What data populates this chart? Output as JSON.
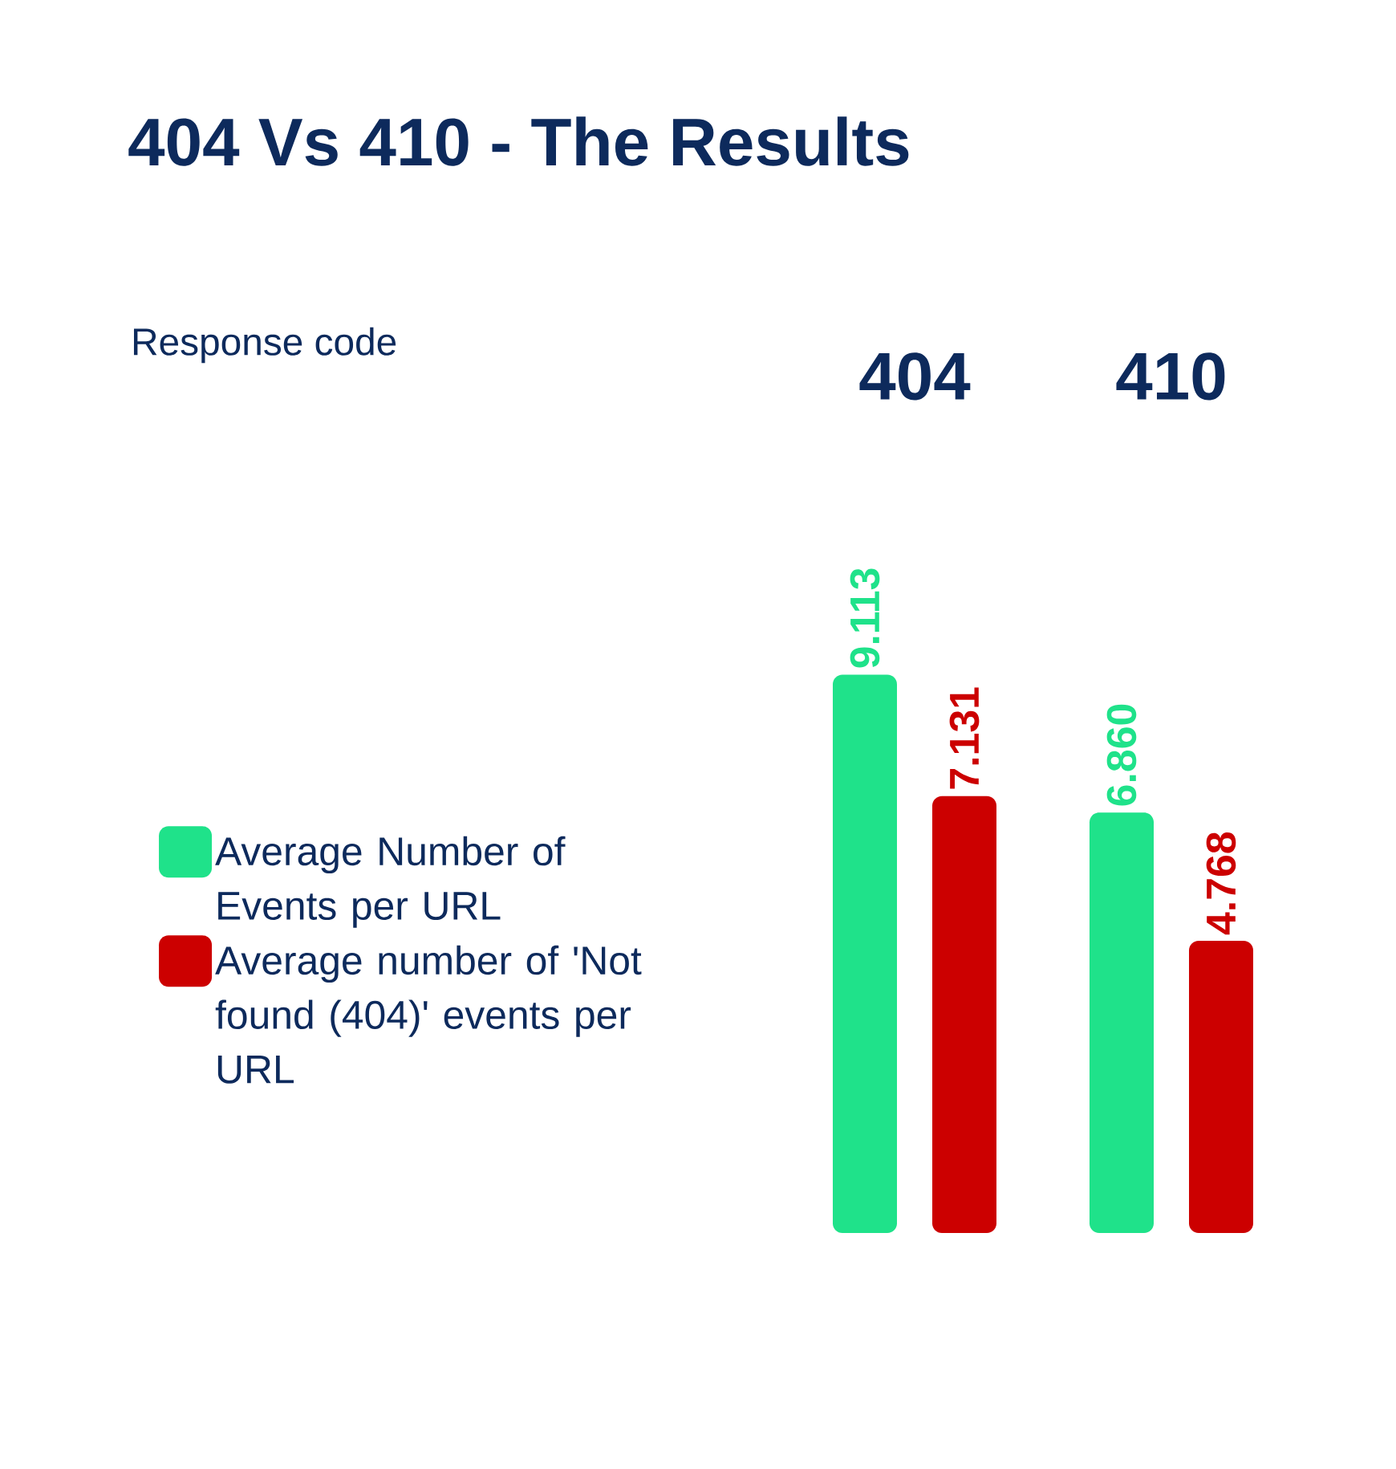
{
  "chart_data": {
    "type": "bar",
    "title": "404 Vs 410 - The Results",
    "annotations": [
      "Response code"
    ],
    "categories": [
      "404",
      "410"
    ],
    "series": [
      {
        "name": "Average Number of Events per URL",
        "color": "#1fe28a",
        "values": [
          9.113,
          6.86
        ],
        "value_labels": [
          "9.113",
          "6.860"
        ]
      },
      {
        "name": "Average number of 'Not found (404)' events per URL",
        "color": "#cc0000",
        "values": [
          7.131,
          4.768
        ],
        "value_labels": [
          "7.131",
          "4.768"
        ]
      }
    ],
    "legend": "left"
  }
}
